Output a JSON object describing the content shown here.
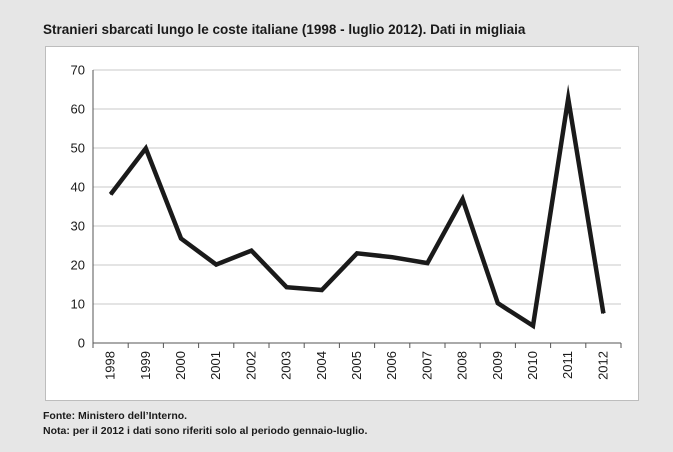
{
  "title": "Stranieri sbarcati lungo le coste italiane (1998 - luglio 2012). Dati in migliaia",
  "notes": {
    "source": "Fonte: Ministero dell’Interno.",
    "note": "Nota: per il 2012 i dati sono riferiti solo al periodo gennaio-luglio."
  },
  "colors": {
    "background": "#e6e6e6",
    "plot": "#ffffff",
    "line": "#1a1a1a",
    "grid": "#c8c8c8"
  },
  "chart_data": {
    "type": "line",
    "title": "Stranieri sbarcati lungo le coste italiane (1998 - luglio 2012). Dati in migliaia",
    "xlabel": "",
    "ylabel": "",
    "ylim": [
      0,
      70
    ],
    "yticks": [
      0,
      10,
      20,
      30,
      40,
      50,
      60,
      70
    ],
    "grid": true,
    "legend": "none",
    "categories": [
      "1998",
      "1999",
      "2000",
      "2001",
      "2002",
      "2003",
      "2004",
      "2005",
      "2006",
      "2007",
      "2008",
      "2009",
      "2010",
      "2011",
      "2012"
    ],
    "series": [
      {
        "values": [
          38.1,
          49.9,
          26.8,
          20.1,
          23.7,
          14.3,
          13.6,
          23.0,
          22.0,
          20.5,
          36.9,
          10.2,
          4.4,
          62.7,
          7.6
        ]
      }
    ]
  }
}
